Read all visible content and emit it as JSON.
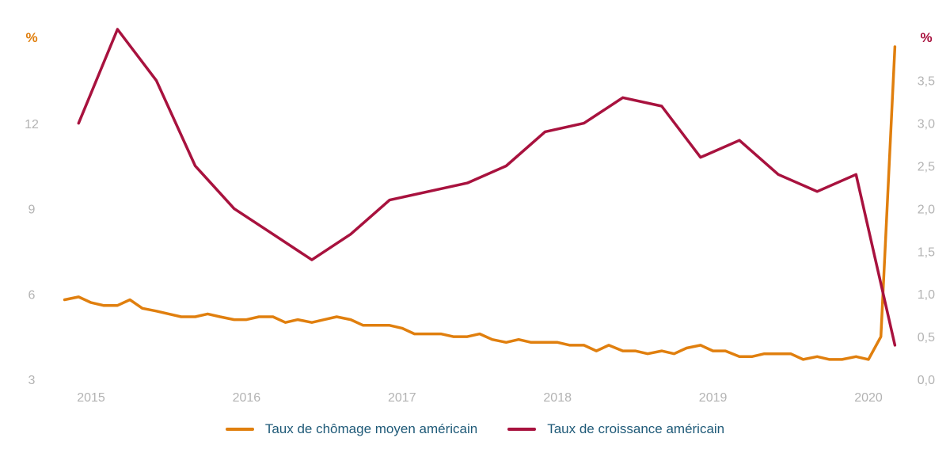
{
  "chart_data": {
    "type": "line",
    "x_tick_labels": [
      "2015",
      "2016",
      "2017",
      "2018",
      "2019",
      "2020"
    ],
    "left_axis": {
      "unit": "%",
      "ticks": [
        "3",
        "6",
        "9",
        "12"
      ],
      "range": [
        3,
        16
      ]
    },
    "right_axis": {
      "unit": "%",
      "ticks": [
        "0,0",
        "0,5",
        "1,0",
        "1,5",
        "2,0",
        "2,5",
        "3,0",
        "3,5"
      ],
      "range": [
        0,
        4
      ]
    },
    "grid": false,
    "legend_position": "bottom",
    "series": [
      {
        "name": "Taux de chômage moyen américain",
        "axis": "left",
        "color": "#e07f0e",
        "x": [
          2014.83,
          2014.92,
          2015.0,
          2015.08,
          2015.17,
          2015.25,
          2015.33,
          2015.42,
          2015.5,
          2015.58,
          2015.67,
          2015.75,
          2015.83,
          2015.92,
          2016.0,
          2016.08,
          2016.17,
          2016.25,
          2016.33,
          2016.42,
          2016.5,
          2016.58,
          2016.67,
          2016.75,
          2016.83,
          2016.92,
          2017.0,
          2017.08,
          2017.17,
          2017.25,
          2017.33,
          2017.42,
          2017.5,
          2017.58,
          2017.67,
          2017.75,
          2017.83,
          2017.92,
          2018.0,
          2018.08,
          2018.17,
          2018.25,
          2018.33,
          2018.42,
          2018.5,
          2018.58,
          2018.67,
          2018.75,
          2018.83,
          2018.92,
          2019.0,
          2019.08,
          2019.17,
          2019.25,
          2019.33,
          2019.42,
          2019.5,
          2019.58,
          2019.67,
          2019.75,
          2019.83,
          2019.92,
          2020.0,
          2020.08,
          2020.17
        ],
        "values": [
          5.8,
          5.9,
          5.7,
          5.6,
          5.6,
          5.8,
          5.5,
          5.4,
          5.3,
          5.2,
          5.2,
          5.3,
          5.2,
          5.1,
          5.1,
          5.2,
          5.2,
          5.0,
          5.1,
          5.0,
          5.1,
          5.2,
          5.1,
          4.9,
          4.9,
          4.9,
          4.8,
          4.6,
          4.6,
          4.6,
          4.5,
          4.5,
          4.6,
          4.4,
          4.3,
          4.4,
          4.3,
          4.3,
          4.3,
          4.2,
          4.2,
          4.0,
          4.2,
          4.0,
          4.0,
          3.9,
          4.0,
          3.9,
          4.1,
          4.2,
          4.0,
          4.0,
          3.8,
          3.8,
          3.9,
          3.9,
          3.9,
          3.7,
          3.8,
          3.7,
          3.7,
          3.8,
          3.7,
          4.5,
          14.7
        ]
      },
      {
        "name": "Taux de croissance américain",
        "axis": "right",
        "color": "#a8123e",
        "x": [
          2014.92,
          2015.17,
          2015.42,
          2015.67,
          2015.92,
          2016.17,
          2016.42,
          2016.67,
          2016.92,
          2017.17,
          2017.42,
          2017.67,
          2017.92,
          2018.17,
          2018.42,
          2018.67,
          2018.92,
          2019.17,
          2019.42,
          2019.67,
          2019.92,
          2020.17
        ],
        "values": [
          3.0,
          4.1,
          3.5,
          2.5,
          2.0,
          1.7,
          1.4,
          1.7,
          2.1,
          2.2,
          2.3,
          2.5,
          2.9,
          3.0,
          3.3,
          3.2,
          2.6,
          2.8,
          2.4,
          2.2,
          2.4,
          0.4
        ]
      }
    ]
  }
}
